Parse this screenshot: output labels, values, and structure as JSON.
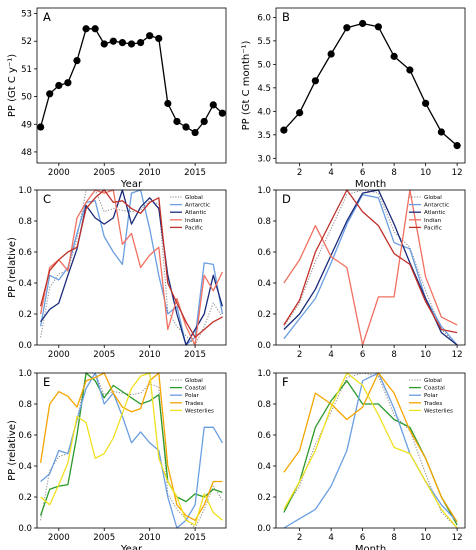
{
  "chart_data": [
    {
      "panel": "A",
      "type": "line",
      "xlabel": "Year",
      "ylabel": "PP (Gt C y⁻¹)",
      "xlim": [
        1997.6,
        2018.4
      ],
      "ylim": [
        47.6,
        53.2
      ],
      "xticks": [
        2000,
        2005,
        2010,
        2015
      ],
      "yticks": [
        48,
        49,
        50,
        51,
        52,
        53
      ],
      "markers": true,
      "series": [
        {
          "color": "#000000",
          "x": [
            1998,
            1999,
            2000,
            2001,
            2002,
            2003,
            2004,
            2005,
            2006,
            2007,
            2008,
            2009,
            2010,
            2011,
            2012,
            2013,
            2014,
            2015,
            2016,
            2017,
            2018
          ],
          "values": [
            48.9,
            50.1,
            50.4,
            50.5,
            51.3,
            52.45,
            52.45,
            51.9,
            52.0,
            51.95,
            51.9,
            51.95,
            52.2,
            52.1,
            49.75,
            49.1,
            48.9,
            48.7,
            49.1,
            49.7,
            49.4
          ]
        }
      ]
    },
    {
      "panel": "B",
      "type": "line",
      "xlabel": "Month",
      "ylabel": "PP (Gt C month⁻¹)",
      "xlim": [
        0.5,
        12.5
      ],
      "ylim": [
        2.9,
        6.2
      ],
      "xticks": [
        2,
        4,
        6,
        8,
        10,
        12
      ],
      "yticks": [
        3.0,
        3.5,
        4.0,
        4.5,
        5.0,
        5.5,
        6.0
      ],
      "ytick_labels": [
        "3.0",
        "3.5",
        "4.0",
        "4.5",
        "5.0",
        "5.5",
        "6.0"
      ],
      "markers": true,
      "series": [
        {
          "color": "#000000",
          "x": [
            1,
            2,
            3,
            4,
            5,
            6,
            7,
            8,
            9,
            10,
            11,
            12
          ],
          "values": [
            3.6,
            3.97,
            4.65,
            5.22,
            5.78,
            5.87,
            5.8,
            5.17,
            4.88,
            4.17,
            3.56,
            3.27
          ]
        }
      ]
    },
    {
      "panel": "C",
      "type": "line",
      "xlabel": "",
      "ylabel": "PP (relative)",
      "xlim": [
        1997.6,
        2018.4
      ],
      "ylim": [
        0,
        1.0
      ],
      "xticks": [
        2000,
        2005,
        2010,
        2015
      ],
      "yticks": [
        0,
        0.2,
        0.4,
        0.6,
        0.8,
        1.0
      ],
      "ytick_labels": [
        "0.0",
        "0.2",
        "0.4",
        "0.6",
        "0.8",
        "1.0"
      ],
      "legend": "top-right",
      "series": [
        {
          "name": "Global",
          "color": "#888888",
          "dash": true,
          "x": [
            1998,
            1999,
            2000,
            2001,
            2002,
            2003,
            2004,
            2005,
            2006,
            2007,
            2008,
            2009,
            2010,
            2011,
            2012,
            2013,
            2014,
            2015,
            2016,
            2017,
            2018
          ],
          "values": [
            0.05,
            0.37,
            0.46,
            0.48,
            0.69,
            1.0,
            1.0,
            0.86,
            0.88,
            0.87,
            0.86,
            0.87,
            0.93,
            0.91,
            0.22,
            0.12,
            0.06,
            0.0,
            0.12,
            0.27,
            0.18
          ]
        },
        {
          "name": "Antarctic",
          "color": "#6a9ee0",
          "x": [
            1998,
            1999,
            2000,
            2001,
            2002,
            2003,
            2004,
            2005,
            2006,
            2007,
            2008,
            2009,
            2010,
            2011,
            2012,
            2013,
            2014,
            2015,
            2016,
            2017,
            2018
          ],
          "values": [
            0.12,
            0.45,
            0.42,
            0.5,
            0.72,
            0.92,
            0.93,
            0.7,
            0.6,
            0.52,
            0.98,
            1.0,
            0.75,
            0.45,
            0.2,
            0.25,
            0.0,
            0.05,
            0.53,
            0.52,
            0.2
          ]
        },
        {
          "name": "Atlantic",
          "color": "#1a2a7a",
          "x": [
            1998,
            1999,
            2000,
            2001,
            2002,
            2003,
            2004,
            2005,
            2006,
            2007,
            2008,
            2009,
            2010,
            2011,
            2012,
            2013,
            2014,
            2015,
            2016,
            2017,
            2018
          ],
          "values": [
            0.15,
            0.23,
            0.27,
            0.45,
            0.62,
            0.9,
            0.82,
            0.78,
            0.82,
            1.0,
            0.78,
            0.89,
            0.95,
            0.88,
            0.45,
            0.2,
            0.0,
            0.1,
            0.2,
            0.45,
            0.25
          ]
        },
        {
          "name": "Indian",
          "color": "#f07060",
          "x": [
            1998,
            1999,
            2000,
            2001,
            2002,
            2003,
            2004,
            2005,
            2006,
            2007,
            2008,
            2009,
            2010,
            2011,
            2012,
            2013,
            2014,
            2015,
            2016,
            2017,
            2018
          ],
          "values": [
            0.2,
            0.5,
            0.55,
            0.48,
            0.82,
            0.92,
            1.0,
            0.98,
            1.0,
            0.65,
            0.72,
            0.5,
            0.58,
            0.63,
            0.1,
            0.3,
            0.12,
            0.0,
            0.45,
            0.35,
            0.47
          ]
        },
        {
          "name": "Pacific",
          "color": "#c0302a",
          "x": [
            1998,
            1999,
            2000,
            2001,
            2002,
            2003,
            2004,
            2005,
            2006,
            2007,
            2008,
            2009,
            2010,
            2011,
            2012,
            2013,
            2014,
            2015,
            2016,
            2017,
            2018
          ],
          "values": [
            0.25,
            0.48,
            0.55,
            0.6,
            0.63,
            0.88,
            0.95,
            1.0,
            0.92,
            0.93,
            0.88,
            0.85,
            0.92,
            0.95,
            0.4,
            0.27,
            0.15,
            0.05,
            0.1,
            0.15,
            0.18
          ]
        }
      ]
    },
    {
      "panel": "D",
      "type": "line",
      "xlabel": "",
      "ylabel": "",
      "xlim": [
        0.5,
        12.5
      ],
      "ylim": [
        0,
        1.0
      ],
      "xticks": [
        2,
        4,
        6,
        8,
        10,
        12
      ],
      "yticks": [
        0,
        0.2,
        0.4,
        0.6,
        0.8,
        1.0
      ],
      "ytick_labels": [
        "0.0",
        "0.2",
        "0.4",
        "0.6",
        "0.8",
        "1.0"
      ],
      "legend": "top-right",
      "series": [
        {
          "name": "Global",
          "color": "#888888",
          "dash": true,
          "x": [
            1,
            2,
            3,
            4,
            5,
            6,
            7,
            8,
            9,
            10,
            11,
            12
          ],
          "values": [
            0.12,
            0.27,
            0.54,
            0.75,
            0.97,
            1.0,
            0.98,
            0.73,
            0.63,
            0.35,
            0.1,
            0.0
          ]
        },
        {
          "name": "Antarctic",
          "color": "#6a9ee0",
          "x": [
            1,
            2,
            3,
            4,
            5,
            6,
            7,
            8,
            9,
            10,
            11,
            12
          ],
          "values": [
            0.04,
            0.17,
            0.3,
            0.53,
            0.78,
            0.97,
            0.95,
            0.66,
            0.62,
            0.3,
            0.12,
            0.0
          ]
        },
        {
          "name": "Atlantic",
          "color": "#1a2a7a",
          "x": [
            1,
            2,
            3,
            4,
            5,
            6,
            7,
            8,
            9,
            10,
            11,
            12
          ],
          "values": [
            0.1,
            0.2,
            0.36,
            0.58,
            0.8,
            0.98,
            1.0,
            0.78,
            0.53,
            0.3,
            0.08,
            0.0
          ]
        },
        {
          "name": "Indian",
          "color": "#f07060",
          "x": [
            1,
            2,
            3,
            4,
            5,
            6,
            7,
            8,
            9,
            10,
            11,
            12
          ],
          "values": [
            0.4,
            0.55,
            0.77,
            0.57,
            0.5,
            0.0,
            0.31,
            0.31,
            1.0,
            0.44,
            0.18,
            0.13
          ]
        },
        {
          "name": "Pacific",
          "color": "#c0302a",
          "x": [
            1,
            2,
            3,
            4,
            5,
            6,
            7,
            8,
            9,
            10,
            11,
            12
          ],
          "values": [
            0.13,
            0.29,
            0.6,
            0.8,
            1.0,
            0.86,
            0.77,
            0.59,
            0.52,
            0.28,
            0.1,
            0.08
          ]
        }
      ]
    },
    {
      "panel": "E",
      "type": "line",
      "xlabel": "Year",
      "ylabel": "PP (relative)",
      "xlim": [
        1997.6,
        2018.4
      ],
      "ylim": [
        0,
        1.0
      ],
      "xticks": [
        2000,
        2005,
        2010,
        2015
      ],
      "yticks": [
        0,
        0.2,
        0.4,
        0.6,
        0.8,
        1.0
      ],
      "ytick_labels": [
        "0.0",
        "0.2",
        "0.4",
        "0.6",
        "0.8",
        "1.0"
      ],
      "legend": "top-right",
      "series": [
        {
          "name": "Global",
          "color": "#888888",
          "dash": true,
          "x": [
            1998,
            1999,
            2000,
            2001,
            2002,
            2003,
            2004,
            2005,
            2006,
            2007,
            2008,
            2009,
            2010,
            2011,
            2012,
            2013,
            2014,
            2015,
            2016,
            2017,
            2018
          ],
          "values": [
            0.05,
            0.37,
            0.46,
            0.48,
            0.69,
            1.0,
            1.0,
            0.86,
            0.88,
            0.87,
            0.86,
            0.87,
            0.93,
            0.91,
            0.22,
            0.12,
            0.06,
            0.0,
            0.12,
            0.27,
            0.18
          ]
        },
        {
          "name": "Coastal",
          "color": "#2a9a2a",
          "x": [
            1998,
            1999,
            2000,
            2001,
            2002,
            2003,
            2004,
            2005,
            2006,
            2007,
            2008,
            2009,
            2010,
            2011,
            2012,
            2013,
            2014,
            2015,
            2016,
            2017,
            2018
          ],
          "values": [
            0.08,
            0.25,
            0.27,
            0.28,
            0.6,
            1.0,
            0.95,
            0.84,
            0.92,
            0.88,
            0.84,
            0.8,
            0.82,
            0.86,
            0.3,
            0.2,
            0.17,
            0.22,
            0.2,
            0.25,
            0.23
          ]
        },
        {
          "name": "Polar",
          "color": "#6a9ee0",
          "x": [
            1998,
            1999,
            2000,
            2001,
            2002,
            2003,
            2004,
            2005,
            2006,
            2007,
            2008,
            2009,
            2010,
            2011,
            2012,
            2013,
            2014,
            2015,
            2016,
            2017,
            2018
          ],
          "values": [
            0.3,
            0.35,
            0.5,
            0.48,
            0.7,
            0.9,
            1.0,
            0.8,
            0.87,
            0.72,
            0.55,
            0.62,
            0.55,
            0.5,
            0.2,
            0.0,
            0.05,
            0.15,
            0.65,
            0.65,
            0.55
          ]
        },
        {
          "name": "Trades",
          "color": "#f5a500",
          "x": [
            1998,
            1999,
            2000,
            2001,
            2002,
            2003,
            2004,
            2005,
            2006,
            2007,
            2008,
            2009,
            2010,
            2011,
            2012,
            2013,
            2014,
            2015,
            2016,
            2017,
            2018
          ],
          "values": [
            0.42,
            0.8,
            0.88,
            0.85,
            0.78,
            0.95,
            0.97,
            1.0,
            0.87,
            0.78,
            0.75,
            0.77,
            0.95,
            1.0,
            0.4,
            0.15,
            0.08,
            0.05,
            0.15,
            0.3,
            0.3
          ]
        },
        {
          "name": "Westerlies",
          "color": "#f0e020",
          "x": [
            1998,
            1999,
            2000,
            2001,
            2002,
            2003,
            2004,
            2005,
            2006,
            2007,
            2008,
            2009,
            2010,
            2011,
            2012,
            2013,
            2014,
            2015,
            2016,
            2017,
            2018
          ],
          "values": [
            0.2,
            0.15,
            0.28,
            0.42,
            0.72,
            0.68,
            0.45,
            0.48,
            0.58,
            0.74,
            0.9,
            0.98,
            1.0,
            0.45,
            0.3,
            0.2,
            0.05,
            0.02,
            0.22,
            0.1,
            0.05
          ]
        }
      ]
    },
    {
      "panel": "F",
      "type": "line",
      "xlabel": "Month",
      "ylabel": "",
      "xlim": [
        0.5,
        12.5
      ],
      "ylim": [
        0,
        1.0
      ],
      "xticks": [
        2,
        4,
        6,
        8,
        10,
        12
      ],
      "yticks": [
        0,
        0.2,
        0.4,
        0.6,
        0.8,
        1.0
      ],
      "ytick_labels": [
        "0.0",
        "0.2",
        "0.4",
        "0.6",
        "0.8",
        "1.0"
      ],
      "legend": "top-right",
      "series": [
        {
          "name": "Global",
          "color": "#888888",
          "dash": true,
          "x": [
            1,
            2,
            3,
            4,
            5,
            6,
            7,
            8,
            9,
            10,
            11,
            12
          ],
          "values": [
            0.12,
            0.27,
            0.54,
            0.75,
            0.97,
            1.0,
            0.98,
            0.73,
            0.63,
            0.35,
            0.1,
            0.0
          ]
        },
        {
          "name": "Coastal",
          "color": "#2a9a2a",
          "x": [
            1,
            2,
            3,
            4,
            5,
            6,
            7,
            8,
            9,
            10,
            11,
            12
          ],
          "values": [
            0.1,
            0.3,
            0.65,
            0.82,
            0.95,
            0.8,
            0.8,
            0.7,
            0.65,
            0.45,
            0.2,
            0.02
          ]
        },
        {
          "name": "Polar",
          "color": "#6a9ee0",
          "x": [
            1,
            2,
            3,
            4,
            5,
            6,
            7,
            8,
            9,
            10,
            11,
            12
          ],
          "values": [
            0.0,
            0.06,
            0.12,
            0.27,
            0.5,
            0.95,
            1.0,
            0.77,
            0.48,
            0.3,
            0.15,
            0.04
          ]
        },
        {
          "name": "Trades",
          "color": "#f5a500",
          "x": [
            1,
            2,
            3,
            4,
            5,
            6,
            7,
            8,
            9,
            10,
            11,
            12
          ],
          "values": [
            0.36,
            0.5,
            0.87,
            0.8,
            0.7,
            0.78,
            1.0,
            0.87,
            0.63,
            0.45,
            0.2,
            0.04
          ]
        },
        {
          "name": "Westerlies",
          "color": "#f0e020",
          "x": [
            1,
            2,
            3,
            4,
            5,
            6,
            7,
            8,
            9,
            10,
            11,
            12
          ],
          "values": [
            0.12,
            0.3,
            0.5,
            0.78,
            1.0,
            0.92,
            0.73,
            0.52,
            0.48,
            0.3,
            0.12,
            0.0
          ]
        }
      ]
    }
  ]
}
